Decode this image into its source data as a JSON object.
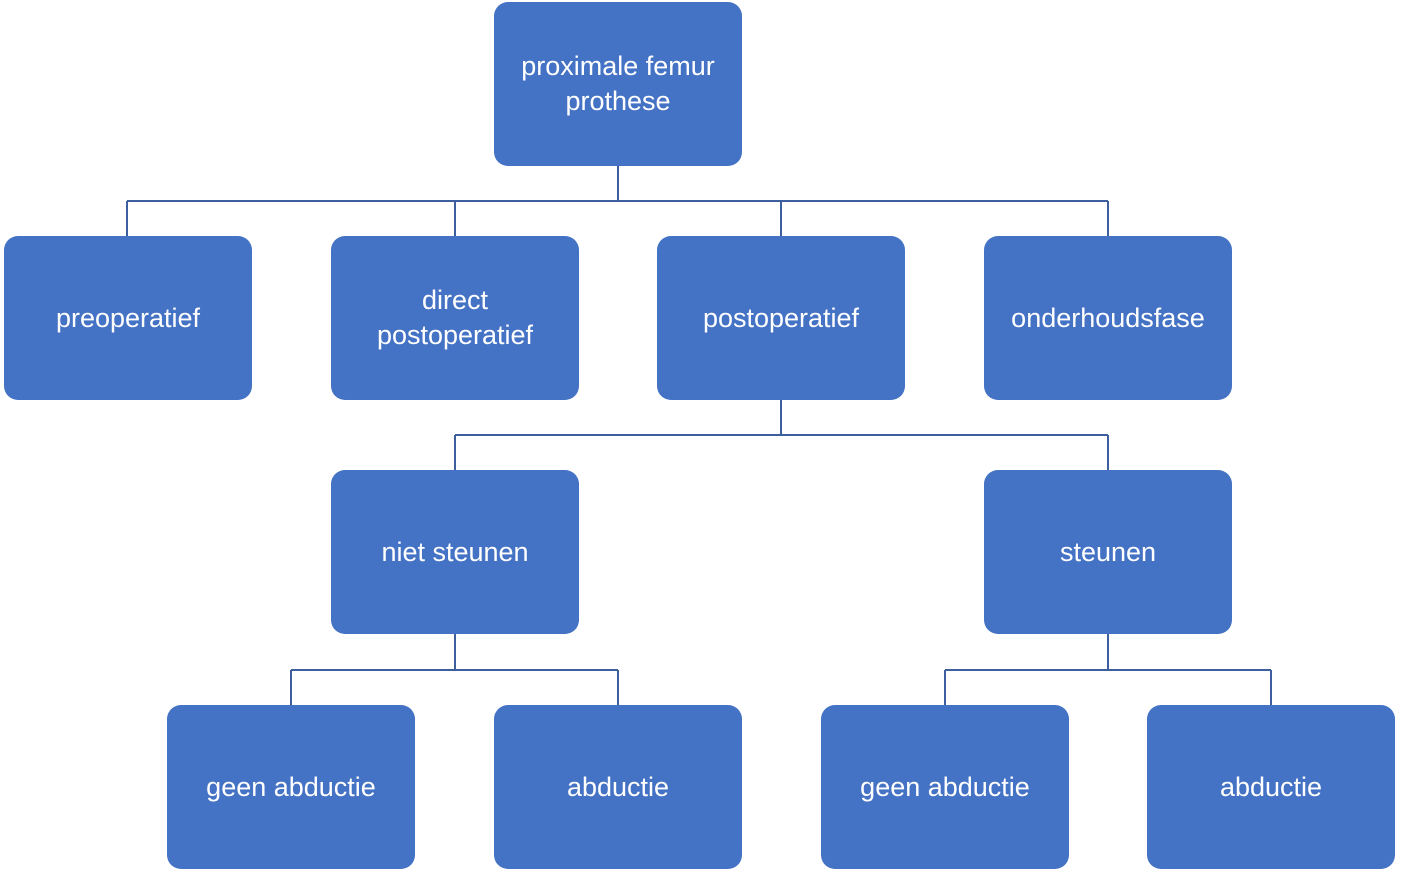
{
  "diagram": {
    "root": "proximale femur prothese",
    "phases": {
      "preoperatief": "preoperatief",
      "direct_postoperatief": "direct postoperatief",
      "postoperatief": "postoperatief",
      "onderhoudsfase": "onderhoudsfase"
    },
    "postoperatief_children": {
      "niet_steunen": "niet steunen",
      "steunen": "steunen"
    },
    "niet_steunen_children": {
      "geen_abductie": "geen abductie",
      "abductie": "abductie"
    },
    "steunen_children": {
      "geen_abductie": "geen abductie",
      "abductie": "abductie"
    }
  },
  "colors": {
    "node_fill": "#4472c4",
    "node_text": "#ffffff",
    "connector": "#3d5f9e"
  }
}
